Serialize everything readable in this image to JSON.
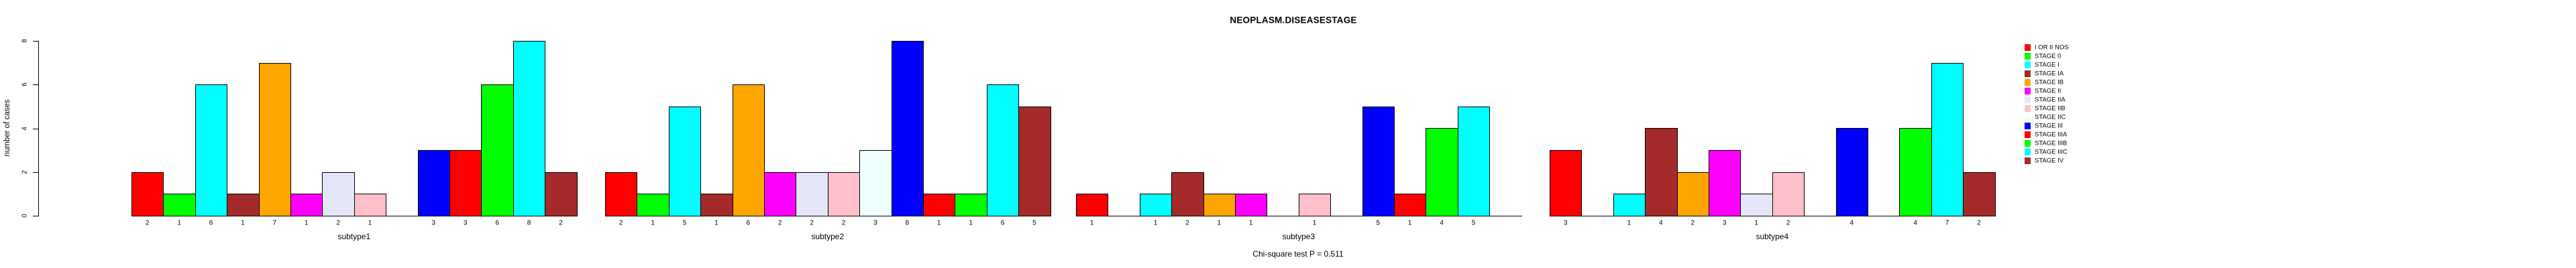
{
  "page": {
    "background": "#FFFFFF"
  },
  "chart_data": {
    "type": "bar",
    "title": "NEOPLASM.DISEASESTAGE",
    "ylabel": "number of cases",
    "xlabel": "",
    "ylim": [
      0,
      8
    ],
    "y_ticks": [
      0,
      2,
      4,
      6,
      8
    ],
    "grid": false,
    "legend_position": "right-inside",
    "annotation": "Chi-square test P = 0.511",
    "bar_value_label_rule": "count printed under each nonzero bar; zero bars drawn as flat baseline segment with no label",
    "stages": [
      {
        "label": "I OR II NOS",
        "color": "#FF0000"
      },
      {
        "label": "STAGE 0",
        "color": "#00FF00"
      },
      {
        "label": "STAGE I",
        "color": "#00FFFF"
      },
      {
        "label": "STAGE IA",
        "color": "#A52A2A"
      },
      {
        "label": "STAGE IB",
        "color": "#FFA500"
      },
      {
        "label": "STAGE II",
        "color": "#FF00FF"
      },
      {
        "label": "STAGE IIA",
        "color": "#E6E6FA"
      },
      {
        "label": "STAGE IIB",
        "color": "#FFC0CB"
      },
      {
        "label": "STAGE IIC",
        "color": "#F0FFFF"
      },
      {
        "label": "STAGE III",
        "color": "#0000FF"
      },
      {
        "label": "STAGE IIIA",
        "color": "#FF0000"
      },
      {
        "label": "STAGE IIIB",
        "color": "#00FF00"
      },
      {
        "label": "STAGE IIIC",
        "color": "#00FFFF"
      },
      {
        "label": "STAGE IV",
        "color": "#A52A2A"
      }
    ],
    "groups": [
      {
        "label": "subtype1",
        "values": [
          2,
          1,
          6,
          1,
          7,
          1,
          2,
          1,
          0,
          3,
          3,
          6,
          8,
          2
        ]
      },
      {
        "label": "subtype2",
        "values": [
          2,
          1,
          5,
          1,
          6,
          2,
          2,
          2,
          3,
          8,
          1,
          1,
          6,
          5
        ]
      },
      {
        "label": "subtype3",
        "values": [
          1,
          0,
          1,
          2,
          1,
          1,
          0,
          1,
          0,
          5,
          1,
          4,
          5,
          0
        ]
      },
      {
        "label": "subtype4",
        "values": [
          3,
          0,
          1,
          4,
          2,
          3,
          1,
          2,
          0,
          4,
          0,
          4,
          7,
          2
        ]
      }
    ]
  }
}
